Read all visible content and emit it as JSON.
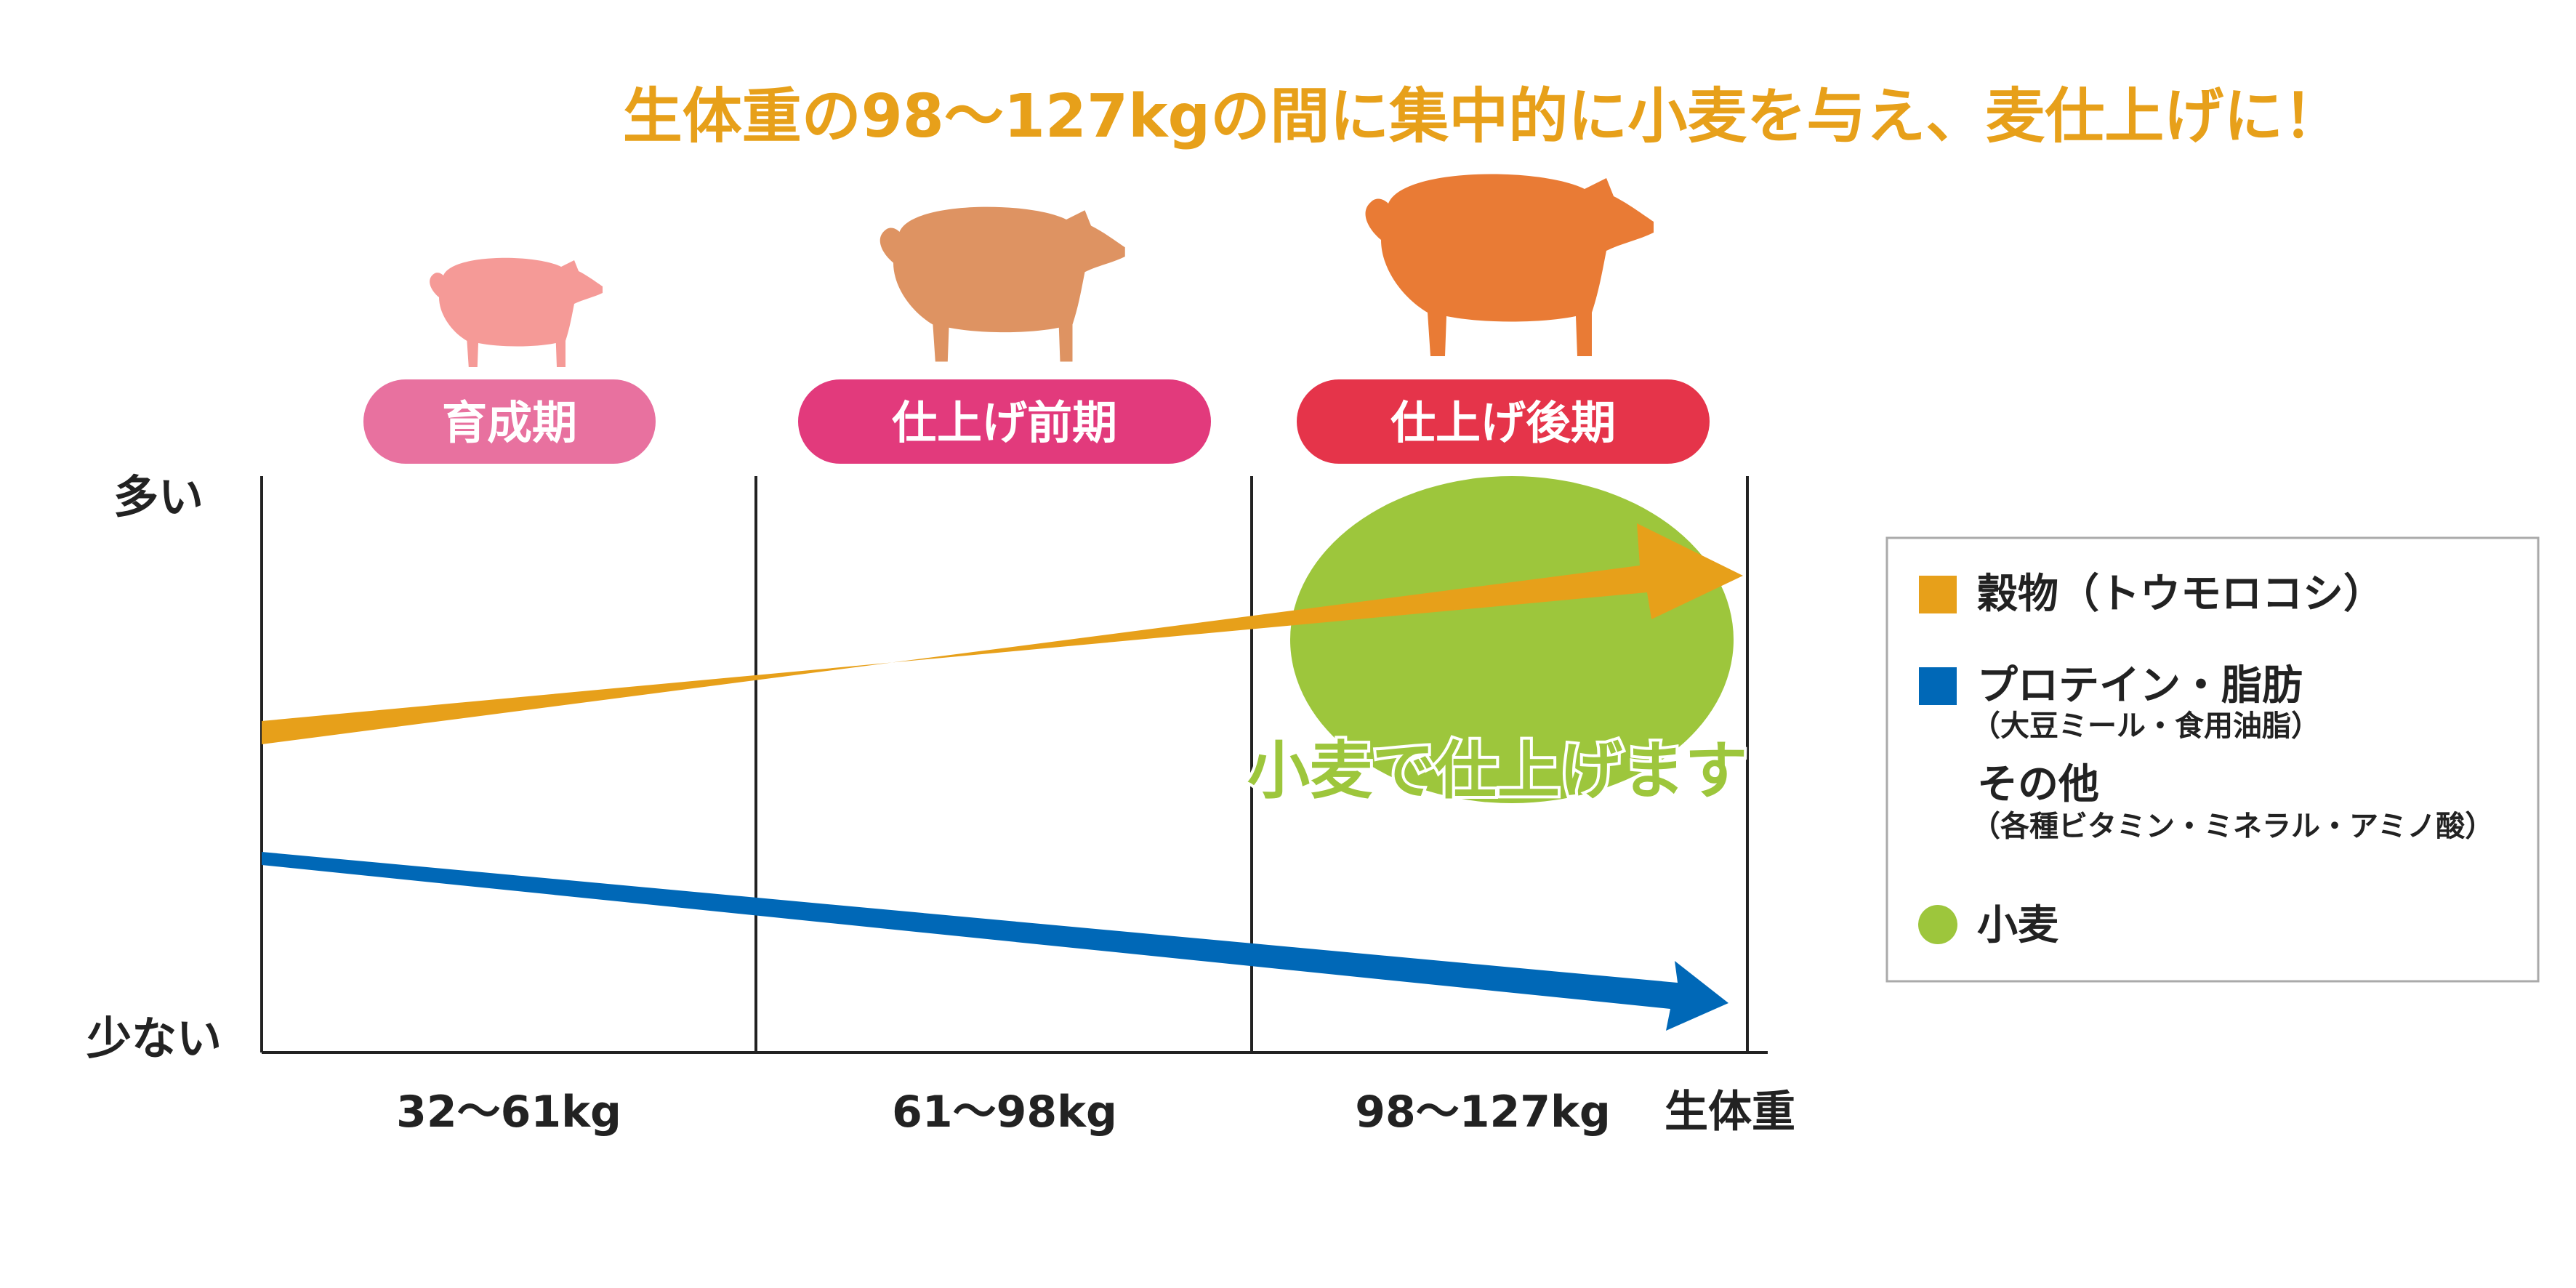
{
  "headline": "生体重の98〜127kgの間に集中的に小麦を与え、麦仕上げに！",
  "stages": [
    {
      "label": "育成期",
      "color": "#e8719f"
    },
    {
      "label": "仕上げ前期",
      "color": "#e23a7c"
    },
    {
      "label": "仕上げ後期",
      "color": "#e5344a"
    }
  ],
  "pig_colors": [
    "#f59a97",
    "#de9362",
    "#e97b35"
  ],
  "y_axis": {
    "high_label": "多い",
    "low_label": "少ない"
  },
  "x_axis": {
    "ranges": [
      "32〜61kg",
      "61〜98kg",
      "98〜127kg"
    ],
    "axis_label": "生体重"
  },
  "wheat_label": "小麦で仕上げます",
  "colors": {
    "grain": "#e7a01a",
    "protein": "#0068b7",
    "wheat": "#9dc63c",
    "headline": "#e7a01a",
    "axis": "#222222"
  },
  "legend": {
    "items": [
      {
        "label": "穀物（トウモロコシ）",
        "sub": "",
        "swatch": "square",
        "color": "#e7a01a"
      },
      {
        "label": "プロテイン・脂肪",
        "sub": "（大豆ミール・食用油脂）",
        "swatch": "square",
        "color": "#0068b7"
      },
      {
        "label": "その他",
        "sub": "（各種ビタミン・ミネラル・アミノ酸）",
        "swatch": "none",
        "color": ""
      },
      {
        "label": "小麦",
        "sub": "",
        "swatch": "circle",
        "color": "#9dc63c"
      }
    ]
  },
  "chart_data": {
    "type": "line",
    "categories": [
      "32〜61kg",
      "61〜98kg",
      "98〜127kg"
    ],
    "xlabel": "生体重",
    "ylabel": "",
    "series": [
      {
        "name": "穀物（トウモロコシ）",
        "trend": "increasing",
        "color": "#e7a01a"
      },
      {
        "name": "プロテイン・脂肪",
        "trend": "decreasing",
        "color": "#0068b7"
      }
    ],
    "highlight": {
      "category": "98〜127kg",
      "label": "小麦で仕上げます",
      "series": "小麦"
    },
    "legend": "right"
  }
}
